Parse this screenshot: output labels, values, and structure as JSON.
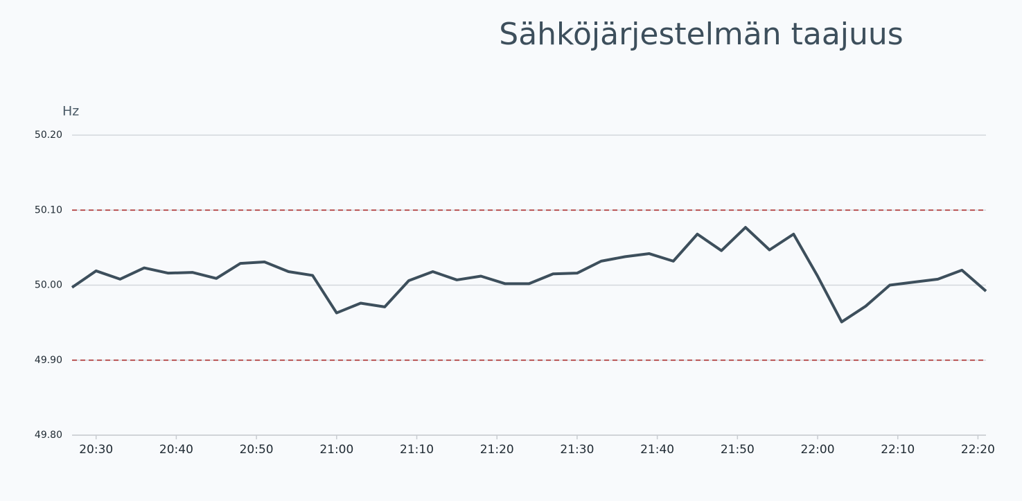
{
  "chart_data": {
    "type": "line",
    "title": "Sähköjärjestelmän taajuus",
    "y_label": "Hz",
    "x": [
      "20:27",
      "20:30",
      "20:33",
      "20:36",
      "20:39",
      "20:42",
      "20:45",
      "20:48",
      "20:51",
      "20:54",
      "20:57",
      "21:00",
      "21:03",
      "21:06",
      "21:09",
      "21:12",
      "21:15",
      "21:18",
      "21:21",
      "21:24",
      "21:27",
      "21:30",
      "21:33",
      "21:36",
      "21:39",
      "21:42",
      "21:45",
      "21:48",
      "21:51",
      "21:54",
      "21:57",
      "22:00",
      "22:03",
      "22:06",
      "22:09",
      "22:12",
      "22:15",
      "22:18",
      "22:21"
    ],
    "series": [
      {
        "color": "#3d4f5c",
        "values": [
          49.997,
          50.019,
          50.008,
          50.023,
          50.016,
          50.017,
          50.009,
          50.029,
          50.031,
          50.018,
          50.013,
          49.963,
          49.976,
          49.971,
          50.006,
          50.018,
          50.007,
          50.012,
          50.002,
          50.002,
          50.015,
          50.016,
          50.032,
          50.038,
          50.042,
          50.032,
          50.068,
          50.046,
          50.077,
          50.047,
          50.068,
          50.012,
          49.951,
          49.972,
          50.0,
          50.004,
          50.008,
          50.02,
          49.992
        ]
      }
    ],
    "xlim": [
      "20:27",
      "22:21"
    ],
    "xticks": [
      "20:30",
      "20:40",
      "20:50",
      "21:00",
      "21:10",
      "21:20",
      "21:30",
      "21:40",
      "21:50",
      "22:00",
      "22:10",
      "22:20"
    ],
    "ylim": [
      49.8,
      50.2
    ],
    "yticks": [
      {
        "value": 49.8,
        "label": "49.80"
      },
      {
        "value": 49.9,
        "label": "49.90"
      },
      {
        "value": 50.0,
        "label": "50.00"
      },
      {
        "value": 50.1,
        "label": "50.10"
      },
      {
        "value": 50.2,
        "label": "50.20"
      }
    ],
    "grid": true,
    "reference_lines": {
      "values": [
        50.1,
        49.9
      ],
      "color": "#b03a3a"
    }
  }
}
